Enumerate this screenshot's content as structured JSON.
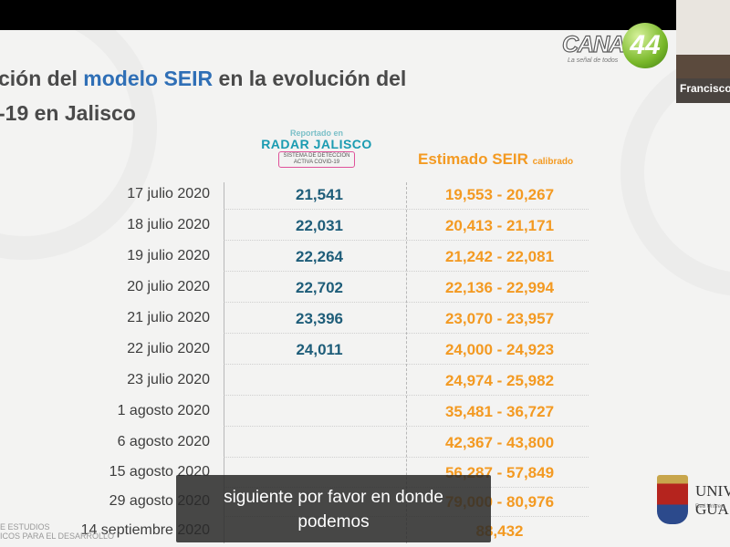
{
  "slide": {
    "title_line1_prefix": "ción del",
    "title_line1_highlight": "modelo SEIR",
    "title_line1_suffix": "en la evolución del",
    "title_line2": "-19 en Jalisco"
  },
  "logo": {
    "canal": "CANAL",
    "number": "44",
    "tagline": "La señal de todos"
  },
  "webcam": {
    "name": "Francisco"
  },
  "headers": {
    "radar_reported": "Reportado en",
    "radar_name": "RADAR JALISCO",
    "radar_sub1": "SISTEMA DE DETECCIÓN",
    "radar_sub2": "ACTIVA COVID-19",
    "seir_estimate": "Estimado SEIR",
    "seir_calibrated": "calibrado"
  },
  "rows": [
    {
      "date": "17  julio 2020",
      "reported": "21,541",
      "estimate": "19,553 - 20,267"
    },
    {
      "date": "18  julio 2020",
      "reported": "22,031",
      "estimate": "20,413 - 21,171"
    },
    {
      "date": "19  julio 2020",
      "reported": "22,264",
      "estimate": "21,242 - 22,081"
    },
    {
      "date": "20  julio 2020",
      "reported": "22,702",
      "estimate": "22,136 - 22,994"
    },
    {
      "date": "21  julio 2020",
      "reported": "23,396",
      "estimate": "23,070 - 23,957"
    },
    {
      "date": "22  julio 2020",
      "reported": "24,011",
      "estimate": "24,000 - 24,923"
    },
    {
      "date": "23  julio 2020",
      "reported": "",
      "estimate": "24,974 - 25,982"
    },
    {
      "date": "1 agosto 2020",
      "reported": "",
      "estimate": "35,481 - 36,727"
    },
    {
      "date": "6 agosto 2020",
      "reported": "",
      "estimate": "42,367 - 43,800"
    },
    {
      "date": "15 agosto 2020",
      "reported": "",
      "estimate": "56,287 - 57,849"
    },
    {
      "date": "29 agosto 2020",
      "reported": "",
      "estimate": "79,000 - 80,976"
    },
    {
      "date": "14 septiembre 2020",
      "reported": "",
      "estimate": "88,432"
    }
  ],
  "footer": {
    "line1": "E ESTUDIOS",
    "line2": "ICOS PARA EL DESARROLLO"
  },
  "university": {
    "name_partial": "UNIV",
    "name_partial2": "GUA",
    "sub": "Red Univers"
  },
  "caption": {
    "line1": "siguiente por favor en donde",
    "line2": "podemos"
  }
}
